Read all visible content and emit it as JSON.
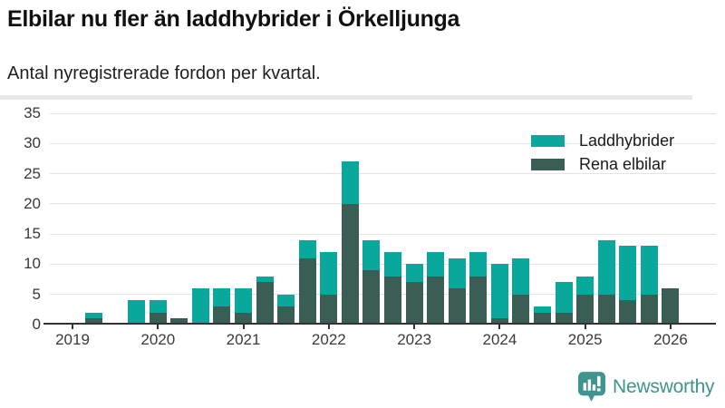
{
  "header": {
    "title": "Elbilar nu fler än laddhybrider i Örkelljunga",
    "subtitle": "Antal nyregistrerade fordon per kvartal."
  },
  "colors": {
    "laddhybrider": "#0aa79d",
    "rena_elbilar": "#3a5e55",
    "grid": "#e3e3e3",
    "axis_text": "#3a3a3a",
    "baseline": "#333333",
    "brand_teal": "#3e948e"
  },
  "legend": {
    "items": [
      {
        "label": "Laddhybrider",
        "color": "#0aa79d"
      },
      {
        "label": "Rena elbilar",
        "color": "#3a5e55"
      }
    ]
  },
  "chart_data": {
    "type": "bar",
    "stacked": true,
    "title": "Elbilar nu fler än laddhybrider i Örkelljunga",
    "subtitle": "Antal nyregistrerade fordon per kvartal.",
    "xlabel": "",
    "ylabel": "",
    "grid": true,
    "legend_position": "top-right",
    "ylim": [
      0,
      35
    ],
    "y_ticks": [
      0,
      5,
      10,
      15,
      20,
      25,
      30,
      35
    ],
    "x_tick_labels": [
      "2019",
      "2020",
      "2021",
      "2022",
      "2023",
      "2024",
      "2025",
      "2026"
    ],
    "categories": [
      "2019 Q1",
      "2019 Q2",
      "2019 Q3",
      "2019 Q4",
      "2020 Q1",
      "2020 Q2",
      "2020 Q3",
      "2020 Q4",
      "2021 Q1",
      "2021 Q2",
      "2021 Q3",
      "2021 Q4",
      "2022 Q1",
      "2022 Q2",
      "2022 Q3",
      "2022 Q4",
      "2023 Q1",
      "2023 Q2",
      "2023 Q3",
      "2023 Q4",
      "2024 Q1",
      "2024 Q2",
      "2024 Q3",
      "2024 Q4",
      "2025 Q1",
      "2025 Q2",
      "2025 Q3",
      "2025 Q4",
      "2026 Q1"
    ],
    "series": [
      {
        "name": "Rena elbilar",
        "stack_order": "bottom",
        "color": "#3a5e55",
        "values": [
          0,
          1,
          0,
          0,
          2,
          1,
          0,
          3,
          2,
          7,
          3,
          11,
          5,
          20,
          9,
          8,
          7,
          8,
          6,
          8,
          1,
          5,
          2,
          2,
          5,
          5,
          4,
          5,
          6
        ]
      },
      {
        "name": "Laddhybrider",
        "stack_order": "top",
        "color": "#0aa79d",
        "values": [
          0,
          1,
          0,
          4,
          2,
          0,
          6,
          3,
          4,
          1,
          2,
          3,
          7,
          7,
          5,
          4,
          3,
          4,
          5,
          4,
          9,
          6,
          1,
          5,
          3,
          9,
          9,
          8,
          0
        ]
      }
    ]
  },
  "footer": {
    "brand": "Newsworthy"
  }
}
